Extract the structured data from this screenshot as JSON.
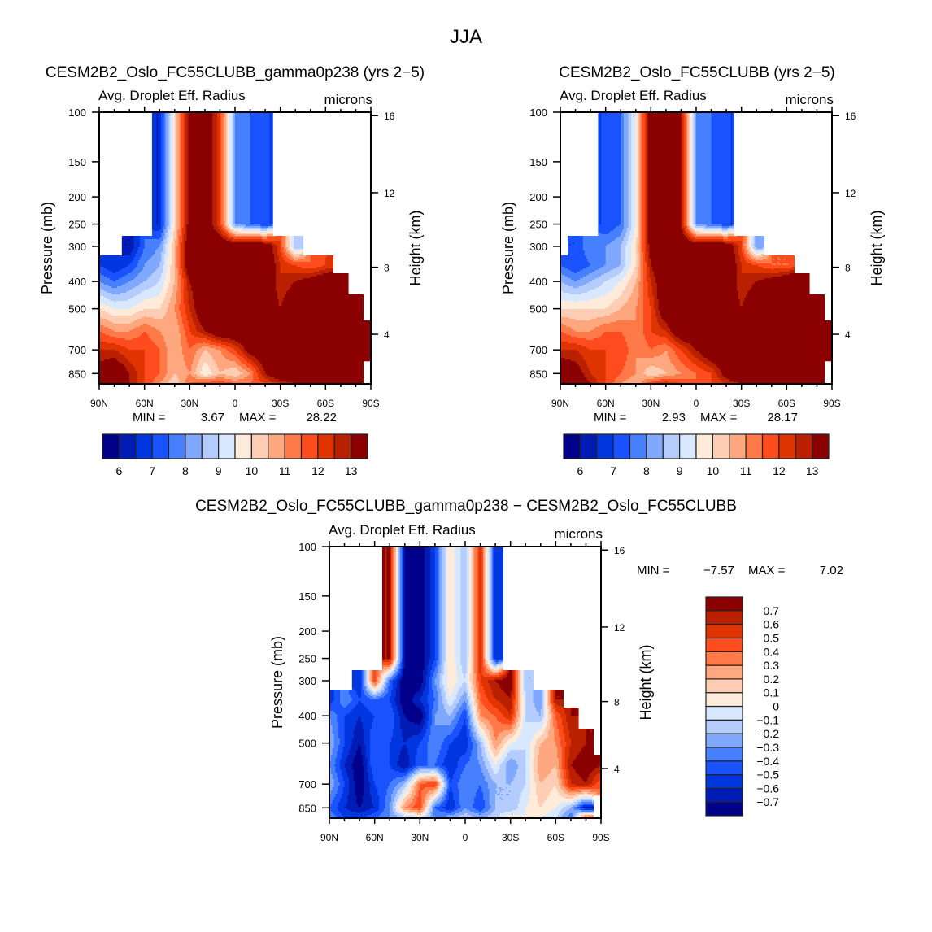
{
  "figure_title": "JJA",
  "chart_data": [
    {
      "type": "heatmap",
      "title": "CESM2B2_Oslo_FC55CLUBB_gamma0p238 (yrs 2−5)",
      "subtitle_left": "Avg. Droplet Eff. Radius",
      "subtitle_right": "microns",
      "ylabel": "Pressure (mb)",
      "ylabel_right": "Height (km)",
      "xlim": [
        90,
        -90
      ],
      "ylim": [
        100,
        925
      ],
      "x_tick_values": [
        90,
        60,
        30,
        0,
        -30,
        -60,
        -90
      ],
      "x_tick_labels": [
        "90N",
        "60N",
        "30N",
        "0",
        "30S",
        "60S",
        "90S"
      ],
      "y_ticks": [
        100,
        150,
        200,
        250,
        300,
        400,
        500,
        700,
        850
      ],
      "y_tick_labels": [
        "100",
        "150",
        "200",
        "250",
        "300",
        "400",
        "500",
        "700",
        "850"
      ],
      "right_ticks": [
        4,
        8,
        12,
        16
      ],
      "right_tick_labels": [
        "4",
        "8",
        "12",
        "16"
      ],
      "min_label": "MIN =",
      "min": "3.67",
      "max_label": "MAX =",
      "max": "28.22",
      "lats": [
        90,
        80,
        70,
        60,
        50,
        40,
        30,
        20,
        10,
        0,
        -10,
        -20,
        -30,
        -40,
        -50,
        -60,
        -70,
        -80,
        -90
      ],
      "levels": [
        250,
        300,
        350,
        400,
        500,
        600,
        700,
        850,
        925
      ],
      "values": [
        [
          null,
          null,
          null,
          null,
          6.5,
          10,
          13.5,
          14,
          12,
          8,
          7.5,
          7,
          null,
          null,
          null,
          null,
          null,
          null,
          null
        ],
        [
          null,
          null,
          6,
          7.5,
          8,
          10.5,
          14,
          14,
          14,
          14,
          14,
          14,
          12,
          8.5,
          null,
          null,
          null,
          null,
          null
        ],
        [
          7,
          6.5,
          7,
          8,
          8.5,
          10.5,
          14,
          14,
          14,
          14,
          14,
          14,
          12.5,
          12,
          11.5,
          12,
          null,
          null,
          null
        ],
        [
          8,
          7.5,
          8,
          8.5,
          9,
          10.5,
          13,
          14,
          14,
          14,
          14,
          14,
          12.5,
          13,
          13.5,
          14,
          14,
          null,
          null
        ],
        [
          10,
          9.5,
          9.5,
          10,
          10,
          11,
          12.5,
          14,
          14,
          14,
          14,
          14,
          13,
          14,
          14,
          14,
          14,
          14,
          null
        ],
        [
          11.5,
          11,
          11,
          11.5,
          11,
          10.5,
          12,
          13,
          14,
          14,
          14,
          14,
          14,
          14,
          14,
          14,
          14,
          14,
          14
        ],
        [
          12.5,
          12.5,
          12,
          12,
          11.5,
          10.5,
          11.5,
          10.5,
          11,
          12,
          13.5,
          14,
          14,
          14,
          14,
          14,
          14,
          14,
          14
        ],
        [
          13.5,
          14,
          13,
          12,
          11.5,
          10.5,
          11,
          9.5,
          10.5,
          10,
          11,
          13,
          14,
          14,
          14,
          14,
          14,
          14,
          null
        ],
        [
          14,
          14,
          13,
          12,
          11,
          10,
          11.5,
          12,
          12,
          11.5,
          11.5,
          12,
          12.5,
          13,
          14,
          14,
          14,
          14,
          null
        ]
      ],
      "colorbar": {
        "levels": [
          6,
          6.5,
          7,
          7.5,
          8,
          8.5,
          9,
          9.5,
          10,
          10.5,
          11,
          11.5,
          12,
          12.5,
          13
        ],
        "labels": [
          "6",
          "7",
          "8",
          "9",
          "10",
          "11",
          "12",
          "13"
        ],
        "label_levels": [
          6,
          7,
          8,
          9,
          10,
          11,
          12,
          13
        ],
        "colors": [
          "#00008a",
          "#001cb4",
          "#0036e0",
          "#1a52ff",
          "#4680ff",
          "#80a8ff",
          "#b4ccff",
          "#d8e8ff",
          "#ffebd9",
          "#ffccb4",
          "#ffa880",
          "#ff7a48",
          "#ff4c1e",
          "#e03400",
          "#b82000",
          "#8b0000"
        ]
      }
    },
    {
      "type": "heatmap",
      "title": "CESM2B2_Oslo_FC55CLUBB (yrs 2−5)",
      "subtitle_left": "Avg. Droplet Eff. Radius",
      "subtitle_right": "microns",
      "ylabel": "Pressure (mb)",
      "ylabel_right": "Height (km)",
      "xlim": [
        90,
        -90
      ],
      "ylim": [
        100,
        925
      ],
      "x_tick_values": [
        90,
        60,
        30,
        0,
        -30,
        -60,
        -90
      ],
      "x_tick_labels": [
        "90N",
        "60N",
        "30N",
        "0",
        "30S",
        "60S",
        "90S"
      ],
      "y_ticks": [
        100,
        150,
        200,
        250,
        300,
        400,
        500,
        700,
        850
      ],
      "y_tick_labels": [
        "100",
        "150",
        "200",
        "250",
        "300",
        "400",
        "500",
        "700",
        "850"
      ],
      "right_ticks": [
        4,
        8,
        12,
        16
      ],
      "right_tick_labels": [
        "4",
        "8",
        "12",
        "16"
      ],
      "min_label": "MIN =",
      "min": "2.93",
      "max_label": "MAX =",
      "max": "28.17",
      "lats": [
        90,
        80,
        70,
        60,
        50,
        40,
        30,
        20,
        10,
        0,
        -10,
        -20,
        -30,
        -40,
        -50,
        -60,
        -70,
        -80,
        -90
      ],
      "levels": [
        250,
        300,
        350,
        400,
        500,
        600,
        700,
        850,
        925
      ],
      "values": [
        [
          null,
          null,
          null,
          7,
          7.5,
          9.5,
          14,
          14,
          13,
          8,
          7.5,
          7,
          null,
          null,
          null,
          null,
          null,
          null,
          null
        ],
        [
          null,
          7,
          8,
          8,
          8.5,
          10,
          13.5,
          14,
          14,
          14,
          14,
          14,
          12,
          8,
          null,
          null,
          null,
          null,
          null
        ],
        [
          7.5,
          7,
          7.5,
          8,
          8.5,
          10,
          13,
          14,
          14,
          14,
          14,
          14,
          12.5,
          12,
          11.5,
          11.5,
          null,
          null,
          null
        ],
        [
          8.5,
          8,
          8.5,
          9,
          9.5,
          10.5,
          12.5,
          14,
          14,
          14,
          14,
          14,
          12.5,
          13,
          13.5,
          14,
          14,
          null,
          null
        ],
        [
          10,
          10,
          10,
          10,
          10.5,
          11,
          12,
          14,
          14,
          14,
          14,
          14,
          13,
          14,
          14,
          14,
          14,
          14,
          null
        ],
        [
          11.5,
          11,
          11,
          11.5,
          11.5,
          11,
          12,
          12.5,
          14,
          14,
          14,
          14,
          14,
          14,
          14,
          14,
          14,
          14,
          14
        ],
        [
          12.5,
          12.5,
          12,
          12,
          12,
          11,
          11.5,
          11,
          12,
          13,
          14,
          14,
          14,
          14,
          14,
          14,
          14,
          14,
          14
        ],
        [
          14,
          13.5,
          12.5,
          12,
          11.5,
          11,
          10,
          10.5,
          11,
          11.5,
          12,
          13.5,
          14,
          14,
          14,
          14,
          14,
          14,
          null
        ],
        [
          14,
          14,
          13,
          12,
          11,
          10.5,
          12,
          12.5,
          12,
          11.5,
          12,
          12.5,
          13,
          13.5,
          14,
          14,
          14,
          14,
          null
        ]
      ],
      "colorbar": {
        "levels": [
          6,
          6.5,
          7,
          7.5,
          8,
          8.5,
          9,
          9.5,
          10,
          10.5,
          11,
          11.5,
          12,
          12.5,
          13
        ],
        "labels": [
          "6",
          "7",
          "8",
          "9",
          "10",
          "11",
          "12",
          "13"
        ],
        "label_levels": [
          6,
          7,
          8,
          9,
          10,
          11,
          12,
          13
        ],
        "colors": [
          "#00008a",
          "#001cb4",
          "#0036e0",
          "#1a52ff",
          "#4680ff",
          "#80a8ff",
          "#b4ccff",
          "#d8e8ff",
          "#ffebd9",
          "#ffccb4",
          "#ffa880",
          "#ff7a48",
          "#ff4c1e",
          "#e03400",
          "#b82000",
          "#8b0000"
        ]
      }
    },
    {
      "type": "heatmap",
      "title": "CESM2B2_Oslo_FC55CLUBB_gamma0p238 − CESM2B2_Oslo_FC55CLUBB",
      "subtitle_left": "Avg. Droplet Eff. Radius",
      "subtitle_right": "microns",
      "ylabel": "Pressure (mb)",
      "ylabel_right": "Height (km)",
      "xlim": [
        90,
        -90
      ],
      "ylim": [
        100,
        925
      ],
      "x_tick_values": [
        90,
        60,
        30,
        0,
        -30,
        -60,
        -90
      ],
      "x_tick_labels": [
        "90N",
        "60N",
        "30N",
        "0",
        "30S",
        "60S",
        "90S"
      ],
      "y_ticks": [
        100,
        150,
        200,
        250,
        300,
        400,
        500,
        700,
        850
      ],
      "y_tick_labels": [
        "100",
        "150",
        "200",
        "250",
        "300",
        "400",
        "500",
        "700",
        "850"
      ],
      "right_ticks": [
        4,
        8,
        12,
        16
      ],
      "right_tick_labels": [
        "4",
        "8",
        "12",
        "16"
      ],
      "min_label": "MIN =",
      "min": "−7.57",
      "max_label": "MAX =",
      "max": "7.02",
      "lats": [
        90,
        80,
        70,
        60,
        50,
        40,
        30,
        20,
        10,
        0,
        -10,
        -20,
        -30,
        -40,
        -50,
        -60,
        -70,
        -80,
        -90
      ],
      "levels": [
        250,
        300,
        350,
        400,
        500,
        600,
        700,
        850,
        925
      ],
      "values": [
        [
          null,
          null,
          null,
          null,
          0.7,
          -0.7,
          -0.8,
          -0.5,
          0.1,
          -0.2,
          0.6,
          -0.6,
          null,
          null,
          null,
          null,
          null,
          null,
          null
        ],
        [
          null,
          null,
          -0.6,
          0.5,
          -0.4,
          -0.8,
          -0.8,
          -0.3,
          0.1,
          -0.1,
          0.5,
          0.7,
          0.8,
          -0.2,
          null,
          null,
          null,
          null,
          null
        ],
        [
          -0.6,
          -0.3,
          -0.5,
          -0.4,
          -0.5,
          -0.8,
          -0.6,
          -0.4,
          0.0,
          -0.3,
          0.4,
          0.6,
          0.7,
          -0.1,
          -0.3,
          0.7,
          null,
          null,
          null
        ],
        [
          -0.3,
          -0.5,
          -0.6,
          -0.5,
          -0.4,
          -0.7,
          -0.8,
          -0.3,
          -0.2,
          -0.5,
          0.3,
          0.4,
          0.6,
          -0.1,
          -0.2,
          0.4,
          0.7,
          null,
          null
        ],
        [
          -0.2,
          -0.5,
          -0.7,
          -0.4,
          -0.5,
          -0.6,
          -0.5,
          -0.3,
          -0.5,
          -0.6,
          -0.2,
          0.3,
          0.0,
          -0.1,
          0.2,
          0.3,
          0.6,
          0.7,
          null
        ],
        [
          -0.3,
          -0.6,
          -0.8,
          -0.4,
          -0.5,
          -0.7,
          -0.4,
          -0.4,
          -0.6,
          -0.4,
          -0.3,
          0.0,
          -0.3,
          -0.1,
          0.3,
          0.2,
          0.7,
          0.8,
          0.7
        ],
        [
          -0.2,
          -0.5,
          -0.8,
          -0.5,
          -0.4,
          -0.2,
          0.4,
          0.5,
          -0.5,
          -0.3,
          -0.4,
          -0.2,
          -0.2,
          -0.1,
          0.2,
          0.1,
          0.6,
          0.7,
          0.4
        ],
        [
          -0.4,
          -0.6,
          -0.7,
          -0.6,
          -0.3,
          0.3,
          0.5,
          -0.4,
          -0.6,
          -0.3,
          -0.5,
          -0.2,
          -0.2,
          0.0,
          0.1,
          0.0,
          -0.2,
          -0.7,
          null
        ],
        [
          -0.3,
          -0.5,
          -0.5,
          -0.4,
          -0.3,
          -0.2,
          -0.1,
          -0.3,
          -0.2,
          -0.1,
          -0.2,
          -0.1,
          0.1,
          0.0,
          0.0,
          -0.1,
          -0.4,
          0.6,
          null
        ]
      ],
      "colorbar": {
        "levels": [
          -0.7,
          -0.6,
          -0.5,
          -0.4,
          -0.3,
          -0.2,
          -0.1,
          0,
          0.1,
          0.2,
          0.3,
          0.4,
          0.5,
          0.6,
          0.7
        ],
        "labels": [
          "−0.7",
          "−0.6",
          "−0.5",
          "−0.4",
          "−0.3",
          "−0.2",
          "−0.1",
          "0",
          "0.1",
          "0.2",
          "0.3",
          "0.4",
          "0.5",
          "0.6",
          "0.7"
        ],
        "label_levels": [
          -0.7,
          -0.6,
          -0.5,
          -0.4,
          -0.3,
          -0.2,
          -0.1,
          0,
          0.1,
          0.2,
          0.3,
          0.4,
          0.5,
          0.6,
          0.7
        ],
        "colors": [
          "#00008a",
          "#001cb4",
          "#0036e0",
          "#1a52ff",
          "#4680ff",
          "#80a8ff",
          "#b4ccff",
          "#d8e8ff",
          "#ffebd9",
          "#ffccb4",
          "#ffa880",
          "#ff7a48",
          "#ff4c1e",
          "#e03400",
          "#b82000",
          "#8b0000"
        ]
      }
    }
  ]
}
